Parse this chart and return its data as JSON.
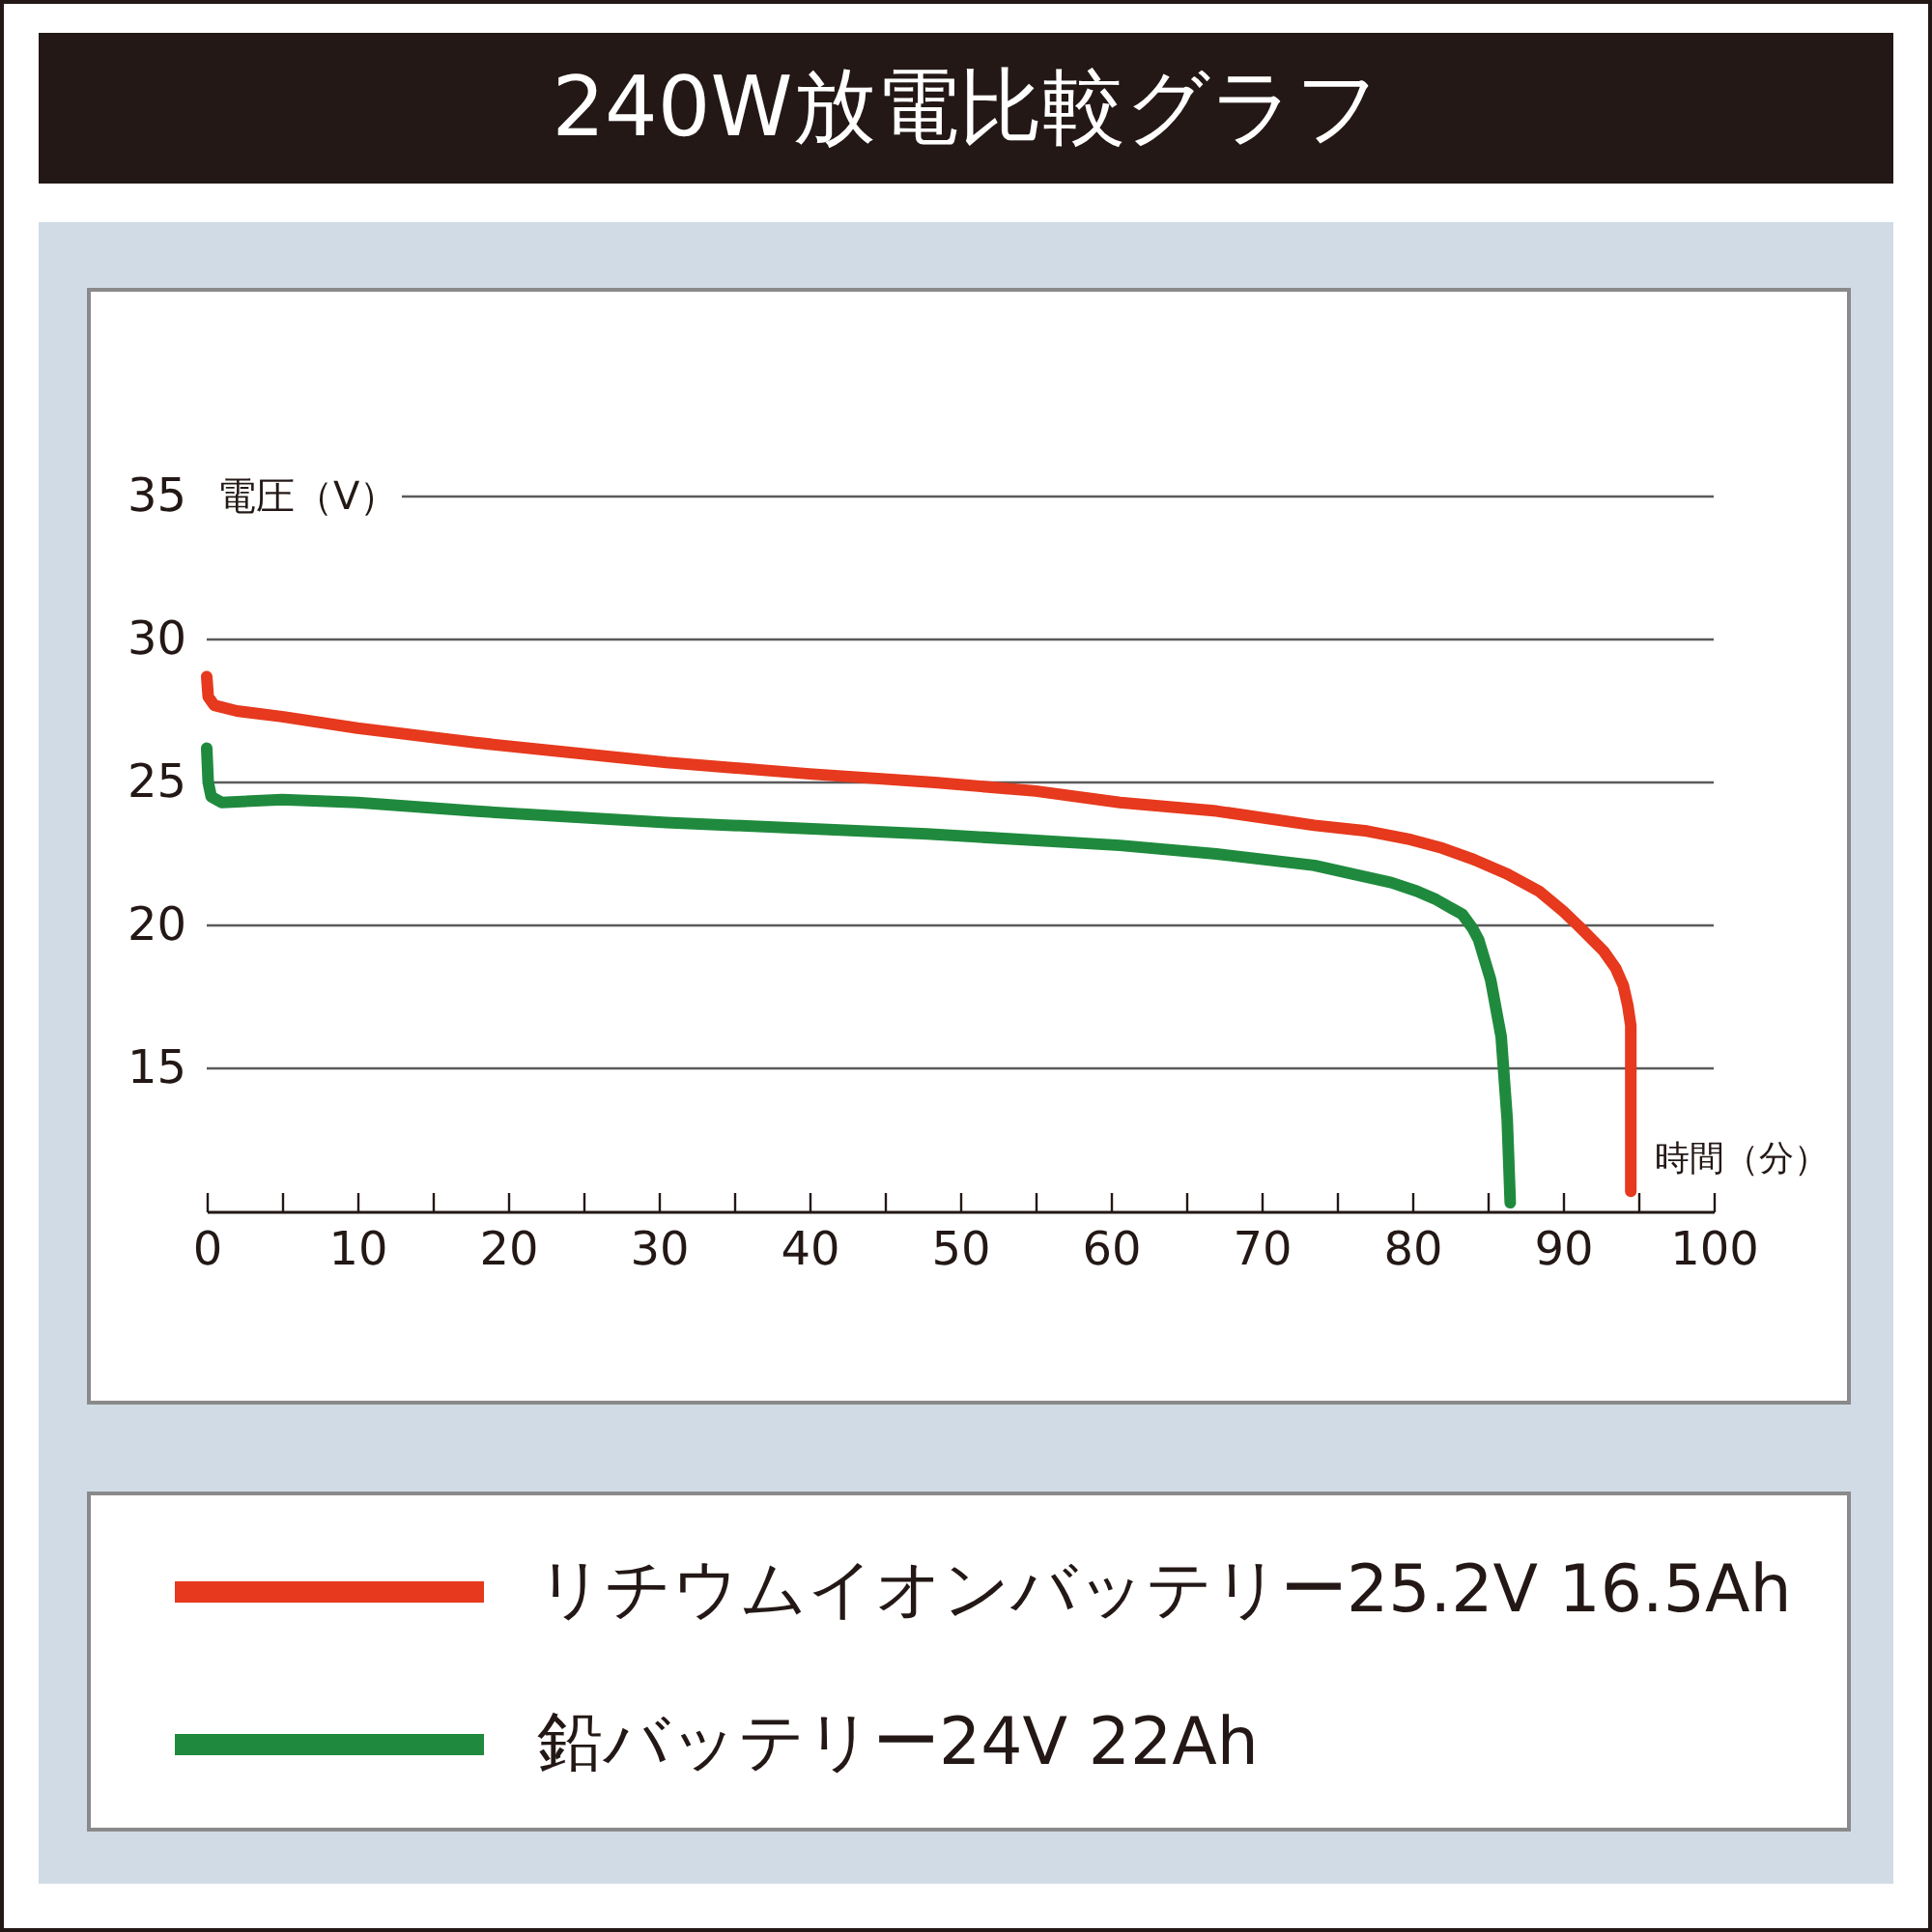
{
  "chart_data": {
    "type": "line",
    "title": "240W放電比較グラフ",
    "xlabel": "時間（分）",
    "ylabel": "電圧（V）",
    "xlim": [
      0,
      100
    ],
    "xticks": [
      0,
      {
        "value": 5,
        "label": null
      },
      10,
      {
        "value": 15,
        "label": null
      },
      20,
      {
        "value": 25,
        "label": null
      },
      30,
      {
        "value": 35,
        "label": null
      },
      40,
      {
        "value": 45,
        "label": null
      },
      50,
      {
        "value": 55,
        "label": null
      },
      60,
      {
        "value": 65,
        "label": null
      },
      70,
      {
        "value": 75,
        "label": null
      },
      80,
      {
        "value": 85,
        "label": null
      },
      90,
      {
        "value": 95,
        "label": null
      },
      100
    ],
    "ylim": [
      10,
      35
    ],
    "yticks": [
      15,
      20,
      25,
      30,
      35
    ],
    "grid": "y",
    "legend": "bottom",
    "series": [
      {
        "name": "リチウムイオンバッテリー25.2V 16.5Ah",
        "color": "#e6391d",
        "x": [
          0,
          0.1,
          0.5,
          2,
          5,
          10,
          17.7,
          30.5,
          40,
          48.3,
          55,
          60.6,
          67,
          73.5,
          77,
          79.9,
          82,
          84.1,
          86.3,
          88.4,
          90,
          91,
          92.7,
          93.5,
          94,
          94.3,
          94.5,
          94.5
        ],
        "values": [
          28.7,
          28.0,
          27.7,
          27.5,
          27.3,
          26.9,
          26.4,
          25.7,
          25.3,
          25.0,
          24.7,
          24.3,
          24.0,
          23.5,
          23.3,
          23.0,
          22.7,
          22.3,
          21.8,
          21.2,
          20.5,
          20.0,
          19.1,
          18.5,
          17.9,
          17.2,
          16.5,
          10.7
        ]
      },
      {
        "name": "鉛バッテリー24V 22Ah",
        "color": "#1f8a3d",
        "x": [
          0,
          0.1,
          0.3,
          1,
          5,
          10,
          17.7,
          30.5,
          47.8,
          60.6,
          67,
          73.5,
          76,
          78.6,
          80.3,
          81.6,
          82.6,
          83.3,
          84,
          84.4,
          85.2,
          85.9,
          86.3,
          86.5
        ],
        "values": [
          26.2,
          25.0,
          24.5,
          24.3,
          24.4,
          24.3,
          24.0,
          23.6,
          23.2,
          22.8,
          22.5,
          22.1,
          21.8,
          21.5,
          21.2,
          20.9,
          20.6,
          20.4,
          19.9,
          19.5,
          18.1,
          16.1,
          13.2,
          10.3
        ]
      }
    ]
  }
}
